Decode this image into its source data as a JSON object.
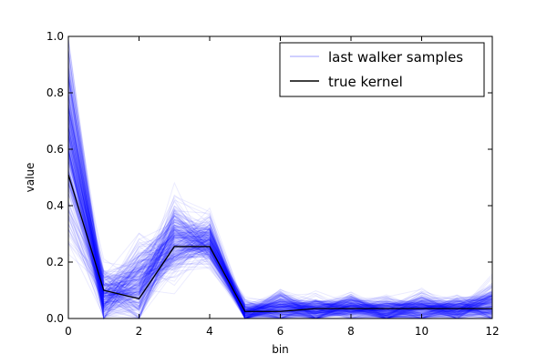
{
  "chart_data": {
    "type": "line",
    "xlabel": "bin",
    "ylabel": "value",
    "xlim": [
      0,
      12
    ],
    "ylim": [
      0.0,
      1.0
    ],
    "xticks": [
      0,
      2,
      4,
      6,
      8,
      10,
      12
    ],
    "yticks": [
      0.0,
      0.2,
      0.4,
      0.6,
      0.8,
      1.0
    ],
    "ytick_labels": [
      "0.0",
      "0.2",
      "0.4",
      "0.6",
      "0.8",
      "1.0"
    ],
    "grid": false,
    "legend_position": "top-right",
    "x": [
      0,
      1,
      2,
      3,
      4,
      5,
      6,
      7,
      8,
      9,
      10,
      11,
      12
    ],
    "series": [
      {
        "name": "true kernel",
        "color": "#000000",
        "values": [
          0.51,
          0.1,
          0.07,
          0.255,
          0.255,
          0.025,
          0.025,
          0.035,
          0.035,
          0.035,
          0.035,
          0.035,
          0.035
        ]
      },
      {
        "name": "last walker samples",
        "color": "#0000ff",
        "opacity": 0.08,
        "sample_count": 300,
        "mean_values": [
          0.65,
          0.08,
          0.12,
          0.28,
          0.27,
          0.02,
          0.04,
          0.03,
          0.04,
          0.03,
          0.04,
          0.03,
          0.05
        ],
        "spread_values": [
          0.22,
          0.07,
          0.1,
          0.09,
          0.06,
          0.03,
          0.04,
          0.03,
          0.035,
          0.03,
          0.035,
          0.03,
          0.05
        ]
      }
    ]
  }
}
